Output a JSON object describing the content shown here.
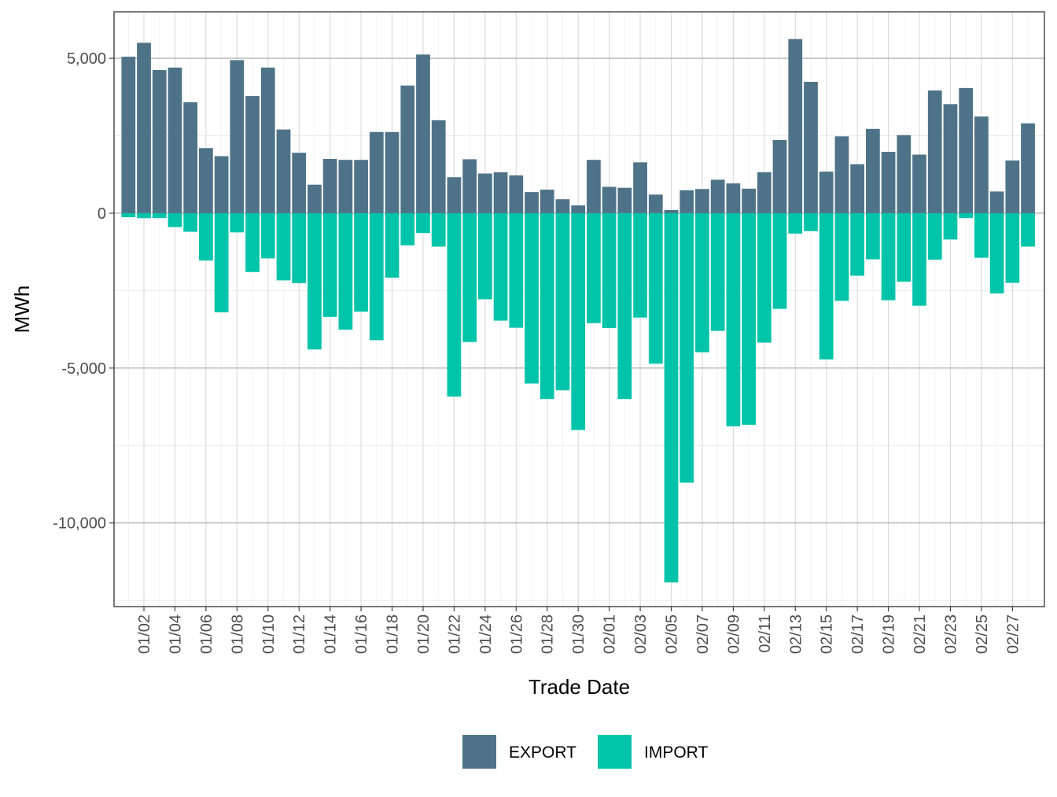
{
  "chart_data": {
    "type": "bar",
    "stacked": true,
    "xlabel": "Trade Date",
    "ylabel": "MWh",
    "ylim": [
      -12700,
      6500
    ],
    "grid": true,
    "y_ticks": [
      5000,
      0,
      -5000,
      -10000
    ],
    "y_tick_labels": [
      "5,000",
      "0",
      "-5,000",
      "-10,000"
    ],
    "x_tick_labels": [
      "01/02",
      "01/04",
      "01/06",
      "01/08",
      "01/10",
      "01/12",
      "01/14",
      "01/16",
      "01/18",
      "01/20",
      "01/22",
      "01/24",
      "01/26",
      "01/28",
      "01/30",
      "02/01",
      "02/03",
      "02/05",
      "02/07",
      "02/09",
      "02/11",
      "02/13",
      "02/15",
      "02/17",
      "02/19",
      "02/21",
      "02/23",
      "02/25",
      "02/27"
    ],
    "legend_position": "bottom",
    "categories": [
      "01/01",
      "01/02",
      "01/03",
      "01/04",
      "01/05",
      "01/06",
      "01/07",
      "01/08",
      "01/09",
      "01/10",
      "01/11",
      "01/12",
      "01/13",
      "01/14",
      "01/15",
      "01/16",
      "01/17",
      "01/18",
      "01/19",
      "01/20",
      "01/21",
      "01/22",
      "01/23",
      "01/24",
      "01/25",
      "01/26",
      "01/27",
      "01/28",
      "01/29",
      "01/30",
      "01/31",
      "02/01",
      "02/02",
      "02/03",
      "02/04",
      "02/05",
      "02/06",
      "02/07",
      "02/08",
      "02/09",
      "02/10",
      "02/11",
      "02/12",
      "02/13",
      "02/14",
      "02/15",
      "02/16",
      "02/17",
      "02/18",
      "02/19",
      "02/20",
      "02/21",
      "02/22",
      "02/23",
      "02/24",
      "02/25",
      "02/26",
      "02/27",
      "02/28"
    ],
    "series": [
      {
        "name": "EXPORT",
        "color": "#4e7388",
        "values": [
          5050,
          5500,
          4620,
          4700,
          3580,
          2100,
          1840,
          4940,
          3780,
          4700,
          2700,
          1950,
          920,
          1750,
          1720,
          1720,
          2620,
          2620,
          4120,
          5120,
          3000,
          1160,
          1740,
          1280,
          1320,
          1220,
          680,
          760,
          450,
          250,
          1720,
          850,
          820,
          1640,
          600,
          100,
          740,
          780,
          1080,
          960,
          790,
          1320,
          2360,
          5620,
          4240,
          1340,
          2480,
          1580,
          2720,
          1980,
          2520,
          1890,
          3960,
          3520,
          4040,
          3120,
          700,
          1700,
          2900
        ]
      },
      {
        "name": "IMPORT",
        "color": "#00c4aa",
        "values": [
          -130,
          -160,
          -160,
          -450,
          -600,
          -1530,
          -3200,
          -620,
          -1900,
          -1460,
          -2170,
          -2260,
          -4400,
          -3350,
          -3760,
          -3180,
          -4100,
          -2080,
          -1040,
          -640,
          -1080,
          -5920,
          -4160,
          -2780,
          -3470,
          -3700,
          -5500,
          -6000,
          -5720,
          -7000,
          -3550,
          -3710,
          -6000,
          -3370,
          -4860,
          -11920,
          -8700,
          -4490,
          -3800,
          -6880,
          -6830,
          -4180,
          -3090,
          -660,
          -580,
          -4720,
          -2830,
          -2020,
          -1490,
          -2810,
          -2210,
          -2990,
          -1500,
          -850,
          -160,
          -1440,
          -2590,
          -2250,
          -1080
        ]
      }
    ]
  }
}
